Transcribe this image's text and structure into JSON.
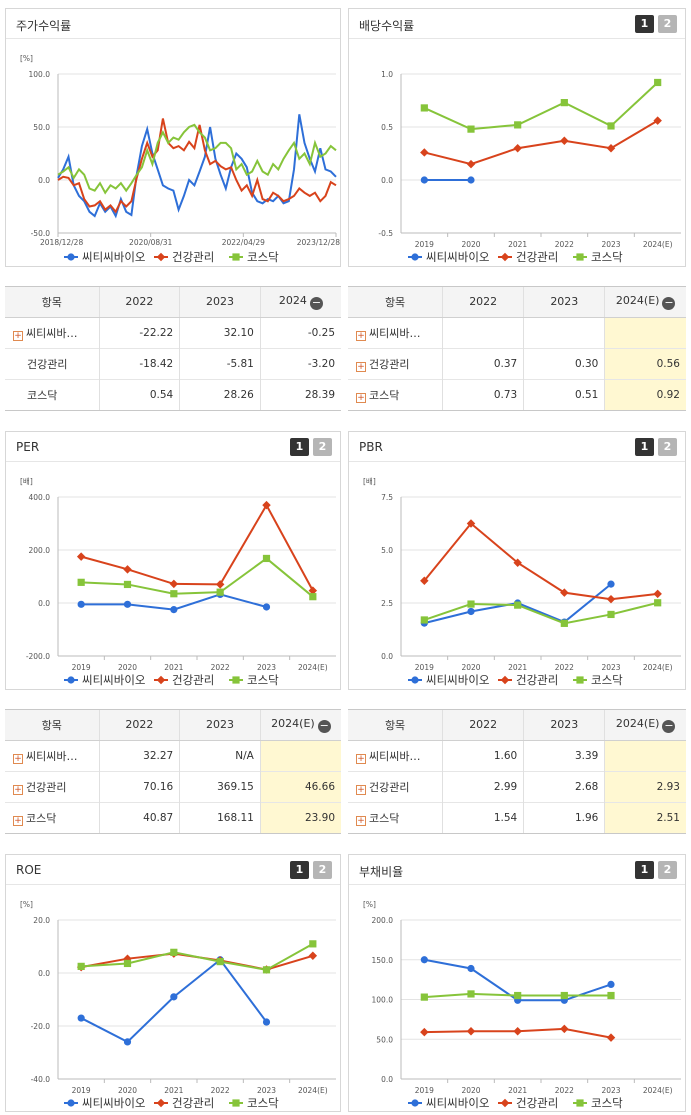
{
  "legend": [
    "씨티씨바이오",
    "건강관리",
    "코스닥"
  ],
  "colors": [
    "#2e6fd8",
    "#d8431c",
    "#86c43a"
  ],
  "panels": {
    "stock": {
      "title": "주가수익률"
    },
    "dividend": {
      "title": "배당수익률",
      "page1": "1",
      "page2": "2"
    },
    "per": {
      "title": "PER",
      "page1": "1",
      "page2": "2"
    },
    "pbr": {
      "title": "PBR",
      "page1": "1",
      "page2": "2"
    },
    "roe": {
      "title": "ROE",
      "page1": "1",
      "page2": "2"
    },
    "debt": {
      "title": "부채비율",
      "page1": "1",
      "page2": "2"
    }
  },
  "tables": {
    "stock": {
      "headers": [
        "항목",
        "2022",
        "2023",
        "2024"
      ],
      "rows": [
        {
          "name": "씨티씨바…",
          "values": [
            "-22.22",
            "32.10",
            "-0.25"
          ]
        },
        {
          "name": "건강관리",
          "values": [
            "-18.42",
            "-5.81",
            "-3.20"
          ]
        },
        {
          "name": "코스닥",
          "values": [
            "0.54",
            "28.26",
            "28.39"
          ]
        }
      ]
    },
    "dividend": {
      "headers": [
        "항목",
        "2022",
        "2023",
        "2024(E)"
      ],
      "rows": [
        {
          "name": "씨티씨바…",
          "values": [
            "",
            "",
            ""
          ]
        },
        {
          "name": "건강관리",
          "values": [
            "0.37",
            "0.30",
            "0.56"
          ]
        },
        {
          "name": "코스닥",
          "values": [
            "0.73",
            "0.51",
            "0.92"
          ]
        }
      ]
    },
    "per": {
      "headers": [
        "항목",
        "2022",
        "2023",
        "2024(E)"
      ],
      "rows": [
        {
          "name": "씨티씨바…",
          "values": [
            "32.27",
            "N/A",
            ""
          ]
        },
        {
          "name": "건강관리",
          "values": [
            "70.16",
            "369.15",
            "46.66"
          ]
        },
        {
          "name": "코스닥",
          "values": [
            "40.87",
            "168.11",
            "23.90"
          ]
        }
      ]
    },
    "pbr": {
      "headers": [
        "항목",
        "2022",
        "2023",
        "2024(E)"
      ],
      "rows": [
        {
          "name": "씨티씨바…",
          "values": [
            "1.60",
            "3.39",
            ""
          ]
        },
        {
          "name": "건강관리",
          "values": [
            "2.99",
            "2.68",
            "2.93"
          ]
        },
        {
          "name": "코스닥",
          "values": [
            "1.54",
            "1.96",
            "2.51"
          ]
        }
      ]
    }
  },
  "chart_data": [
    {
      "id": "stock",
      "type": "line",
      "unit": "[%]",
      "ylim": [
        -50,
        100
      ],
      "yticks": [
        "100.0",
        "50.0",
        "0.0",
        "-50.0"
      ],
      "xticks": [
        "2018/12/28",
        "2020/08/31",
        "2022/04/29",
        "2023/12/28"
      ],
      "series": [
        {
          "name": "씨티씨바이오",
          "values": [
            2,
            10,
            22,
            -5,
            -15,
            -20,
            -30,
            -34,
            -22,
            -30,
            -25,
            -34,
            -18,
            -30,
            -33,
            5,
            32,
            48,
            25,
            10,
            -5,
            -8,
            -10,
            -28,
            -15,
            0,
            -5,
            8,
            22,
            50,
            20,
            5,
            -8,
            12,
            25,
            20,
            12,
            -12,
            -20,
            -22,
            -18,
            -20,
            -15,
            -22,
            -20,
            10,
            62,
            35,
            20,
            8,
            30,
            10,
            8,
            3
          ]
        },
        {
          "name": "건강관리",
          "values": [
            0,
            3,
            2,
            -5,
            -3,
            -18,
            -25,
            -24,
            -20,
            -28,
            -24,
            -30,
            -20,
            -25,
            -20,
            2,
            20,
            35,
            22,
            28,
            58,
            35,
            30,
            32,
            28,
            36,
            30,
            52,
            28,
            15,
            18,
            13,
            10,
            12,
            0,
            -10,
            -5,
            -15,
            0,
            -18,
            -20,
            -12,
            -15,
            -20,
            -18,
            -15,
            -8,
            -12,
            -15,
            -12,
            -20,
            -15,
            -2,
            -5
          ]
        },
        {
          "name": "코스닥",
          "values": [
            5,
            8,
            12,
            2,
            10,
            5,
            -8,
            -10,
            -3,
            -12,
            -5,
            -8,
            -3,
            -10,
            -3,
            5,
            12,
            28,
            15,
            35,
            45,
            35,
            40,
            38,
            45,
            50,
            52,
            45,
            40,
            28,
            30,
            35,
            35,
            30,
            10,
            15,
            5,
            8,
            18,
            8,
            5,
            15,
            10,
            20,
            28,
            35,
            20,
            25,
            15,
            35,
            22,
            25,
            32,
            28
          ]
        }
      ]
    },
    {
      "id": "dividend",
      "type": "line",
      "unit": "",
      "ylim": [
        -0.5,
        1.0
      ],
      "yticks": [
        "1.0",
        "0.5",
        "0.0",
        "-0.5"
      ],
      "categories": [
        "2019",
        "2020",
        "2021",
        "2022",
        "2023",
        "2024(E)"
      ],
      "series": [
        {
          "name": "씨티씨바이오",
          "values": [
            0.0,
            0.0,
            null,
            null,
            null,
            null
          ]
        },
        {
          "name": "건강관리",
          "values": [
            0.26,
            0.15,
            0.3,
            0.37,
            0.3,
            0.56
          ]
        },
        {
          "name": "코스닥",
          "values": [
            0.68,
            0.48,
            0.52,
            0.73,
            0.51,
            0.92
          ]
        }
      ]
    },
    {
      "id": "per",
      "type": "line",
      "unit": "[배]",
      "ylim": [
        -200,
        400
      ],
      "yticks": [
        "400.0",
        "200.0",
        "0.0",
        "-200.0"
      ],
      "categories": [
        "2019",
        "2020",
        "2021",
        "2022",
        "2023",
        "2024(E)"
      ],
      "series": [
        {
          "name": "씨티씨바이오",
          "values": [
            -5,
            -5,
            -25,
            32.27,
            -15,
            null
          ]
        },
        {
          "name": "건강관리",
          "values": [
            175,
            127,
            72,
            70.16,
            369.15,
            46.66
          ]
        },
        {
          "name": "코스닥",
          "values": [
            78,
            70,
            35,
            40.87,
            168.11,
            23.9
          ]
        }
      ]
    },
    {
      "id": "pbr",
      "type": "line",
      "unit": "[배]",
      "ylim": [
        0,
        7.5
      ],
      "yticks": [
        "7.5",
        "5.0",
        "2.5",
        "0.0"
      ],
      "categories": [
        "2019",
        "2020",
        "2021",
        "2022",
        "2023",
        "2024(E)"
      ],
      "series": [
        {
          "name": "씨티씨바이오",
          "values": [
            1.55,
            2.1,
            2.5,
            1.6,
            3.39,
            null
          ]
        },
        {
          "name": "건강관리",
          "values": [
            3.55,
            6.25,
            4.4,
            2.99,
            2.68,
            2.93
          ]
        },
        {
          "name": "코스닥",
          "values": [
            1.7,
            2.45,
            2.4,
            1.54,
            1.96,
            2.51
          ]
        }
      ]
    },
    {
      "id": "roe",
      "type": "line",
      "unit": "[%]",
      "ylim": [
        -40,
        20
      ],
      "yticks": [
        "20.0",
        "0.0",
        "-20.0",
        "-40.0"
      ],
      "categories": [
        "2019",
        "2020",
        "2021",
        "2022",
        "2023",
        "2024(E)"
      ],
      "series": [
        {
          "name": "씨티씨바이오",
          "values": [
            -17,
            -26,
            -9,
            5,
            -18.5,
            null
          ]
        },
        {
          "name": "건강관리",
          "values": [
            2.2,
            5.4,
            7.3,
            4.7,
            1.3,
            6.5
          ]
        },
        {
          "name": "코스닥",
          "values": [
            2.5,
            3.6,
            7.8,
            4.3,
            1.2,
            11
          ]
        }
      ]
    },
    {
      "id": "debt",
      "type": "line",
      "unit": "[%]",
      "ylim": [
        0,
        200
      ],
      "yticks": [
        "200.0",
        "150.0",
        "100.0",
        "50.0",
        "0.0"
      ],
      "categories": [
        "2019",
        "2020",
        "2021",
        "2022",
        "2023",
        "2024(E)"
      ],
      "series": [
        {
          "name": "씨티씨바이오",
          "values": [
            150,
            139,
            99,
            99,
            119,
            null
          ]
        },
        {
          "name": "건강관리",
          "values": [
            59,
            60,
            60,
            63,
            52,
            null
          ]
        },
        {
          "name": "코스닥",
          "values": [
            103,
            107,
            105,
            105,
            105,
            null
          ]
        }
      ]
    }
  ]
}
